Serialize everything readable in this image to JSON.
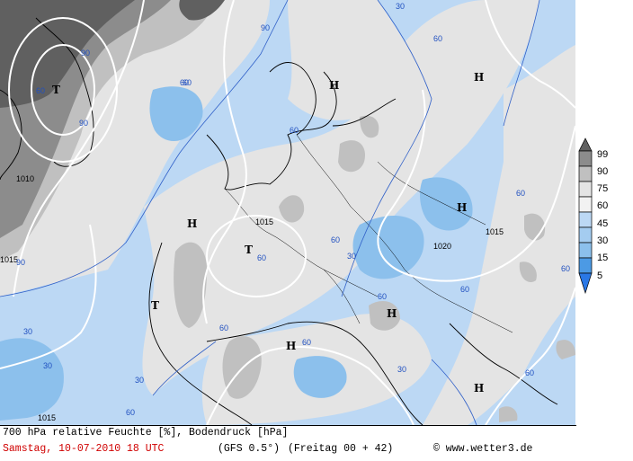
{
  "caption": {
    "line1": "700 hPa relative Feuchte [%], Bodendruck [hPa]",
    "date": "Samstag, 10-07-2010  18 UTC",
    "model": "(GFS 0.5°)",
    "run": "(Freitag 00 + 42)",
    "copyright": "© www.wetter3.de"
  },
  "legend": {
    "levels": [
      "99",
      "90",
      "75",
      "60",
      "45",
      "30",
      "15",
      "5"
    ],
    "colors": [
      "#606060",
      "#8c8c8c",
      "#c0c0c0",
      "#e4e4e4",
      "#bcd8f4",
      "#8cc0ec",
      "#4c9ae4",
      "#2a78e6"
    ]
  },
  "pressure_centers": [
    {
      "type": "T",
      "label": "T"
    },
    {
      "type": "H",
      "label": "H"
    },
    {
      "type": "H",
      "label": "H"
    },
    {
      "type": "H",
      "label": "H"
    },
    {
      "type": "H",
      "label": "H"
    },
    {
      "type": "T",
      "label": "T"
    },
    {
      "type": "T",
      "label": "T"
    },
    {
      "type": "H",
      "label": "H"
    },
    {
      "type": "H",
      "label": "H"
    },
    {
      "type": "H",
      "label": "H"
    }
  ],
  "isobar_labels": [
    "1010",
    "1015",
    "1015",
    "1020",
    "1015",
    "1015"
  ],
  "humidity_labels": [
    "90",
    "90",
    "90",
    "60",
    "60",
    "60",
    "60",
    "60",
    "60",
    "60",
    "30",
    "30",
    "30",
    "30",
    "60",
    "60",
    "60",
    "60",
    "60",
    "60",
    "30",
    "90",
    "30",
    "60",
    "60"
  ]
}
